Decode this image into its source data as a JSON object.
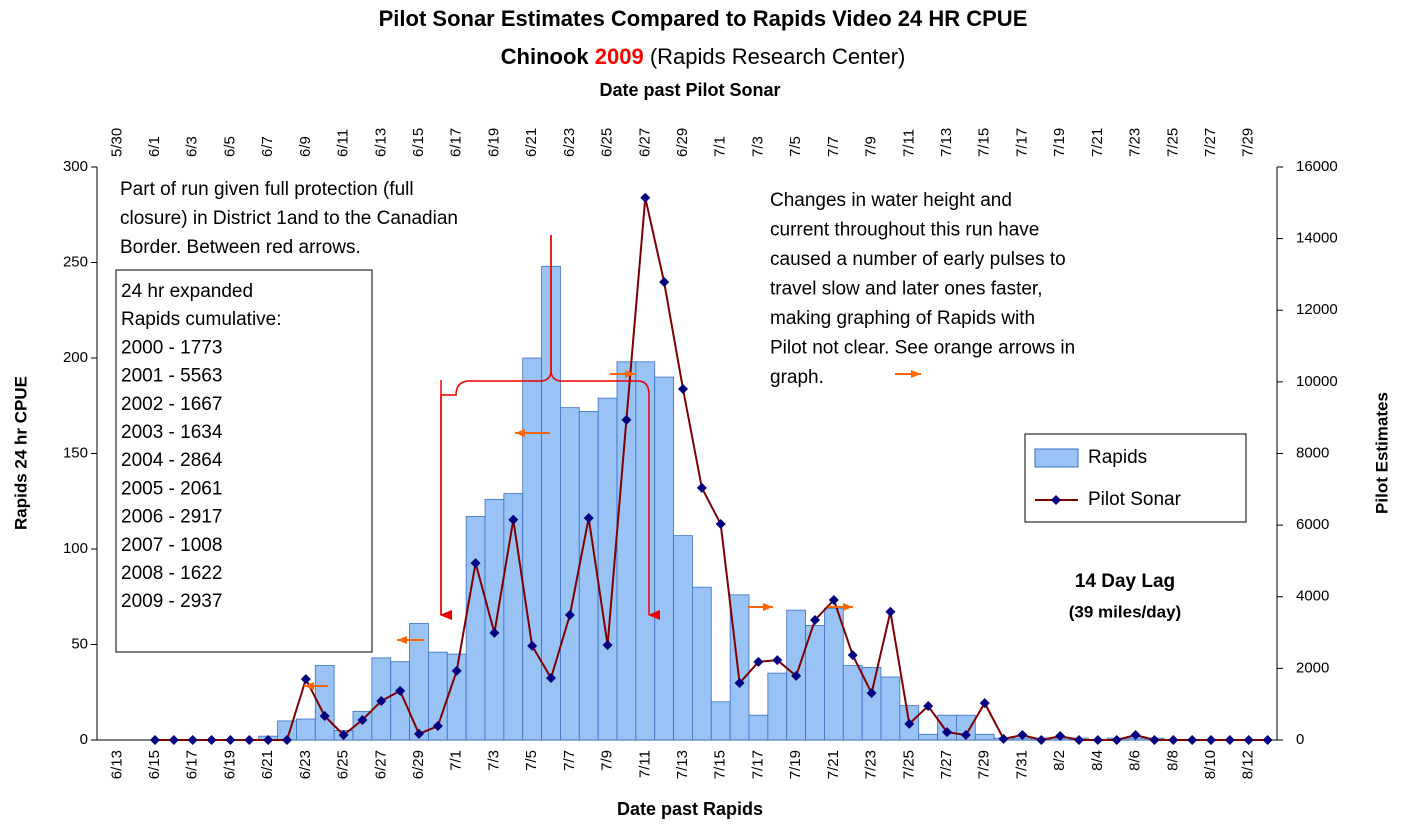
{
  "chart_data": {
    "type": "bar_line",
    "title": "Pilot Sonar Estimates Compared to Rapids Video 24 HR CPUE",
    "subtitle": [
      "Chinook",
      "2009",
      "(Rapids Research Center)"
    ],
    "subtitle_colors": [
      "#000000",
      "#ff0000",
      "#000000"
    ],
    "x2label": "Date past Pilot Sonar",
    "xlabel": "Date past Rapids",
    "ylabel": "Rapids 24 hr CPUE",
    "y2label": "Pilot Estimates",
    "categories": [
      null,
      "6/13",
      null,
      "6/15",
      null,
      "6/17",
      null,
      "6/19",
      null,
      "6/21",
      null,
      "6/23",
      null,
      "6/25",
      null,
      "6/27",
      null,
      "6/29",
      null,
      "7/1",
      null,
      "7/3",
      null,
      "7/5",
      null,
      "7/7",
      null,
      "7/9",
      null,
      "7/11",
      null,
      "7/13",
      null,
      "7/15",
      null,
      "7/17",
      null,
      "7/19",
      null,
      "7/21",
      null,
      "7/23",
      null,
      "7/25",
      null,
      "7/27",
      null,
      "7/29",
      null,
      "7/31",
      null,
      "8/2",
      null,
      "8/4",
      null,
      "8/6",
      null,
      "8/8",
      null,
      "8/10",
      null,
      "8/12",
      null
    ],
    "top_categories": [
      null,
      "5/30",
      null,
      "6/1",
      null,
      "6/3",
      null,
      "6/5",
      null,
      "6/7",
      null,
      "6/9",
      null,
      "6/11",
      null,
      "6/13",
      null,
      "6/15",
      null,
      "6/17",
      null,
      "6/19",
      null,
      "6/21",
      null,
      "6/23",
      null,
      "6/25",
      null,
      "6/27",
      null,
      "6/29",
      null,
      "7/1",
      null,
      "7/3",
      null,
      "7/5",
      null,
      "7/7",
      null,
      "7/9",
      null,
      "7/11",
      null,
      "7/13",
      null,
      "7/15",
      null,
      "7/17",
      null,
      "7/19",
      null,
      "7/21",
      null,
      "7/23",
      null,
      "7/25",
      null,
      "7/27",
      null,
      "7/29",
      null
    ],
    "series": [
      {
        "name": "Rapids",
        "type": "bar",
        "color": "#99c2f5",
        "edge_color": "#3a6fc4",
        "values": [
          0,
          0,
          0,
          0,
          0,
          0,
          0,
          0,
          0,
          2,
          10,
          11,
          39,
          5,
          15,
          43,
          41,
          61,
          46,
          45,
          117,
          126,
          129,
          200,
          248,
          174,
          172,
          179,
          198,
          198,
          190,
          107,
          80,
          20,
          76,
          13,
          35,
          68,
          60,
          69,
          39,
          38,
          33,
          18,
          3,
          13,
          13,
          3,
          1,
          1,
          1,
          1,
          1,
          0,
          1,
          1,
          1,
          0,
          0,
          0,
          0,
          0,
          0
        ]
      },
      {
        "name": "Pilot Sonar",
        "type": "line",
        "axis": "y2",
        "color": "#800000",
        "marker_color": "#000080",
        "values": [
          null,
          null,
          null,
          0,
          0,
          0,
          0,
          0,
          0,
          0,
          0,
          1700,
          670,
          140,
          560,
          1090,
          1370,
          170,
          390,
          1930,
          4940,
          2990,
          6150,
          2630,
          1730,
          3490,
          6200,
          2650,
          8940,
          15140,
          12790,
          9800,
          7040,
          6030,
          1590,
          2180,
          2230,
          1790,
          3350,
          3910,
          2370,
          1310,
          3580,
          450,
          950,
          220,
          140,
          1030,
          30,
          140,
          0,
          110,
          0,
          0,
          0,
          140,
          0,
          0,
          0,
          0,
          0,
          0,
          0
        ]
      }
    ],
    "ylim": [
      0,
      300
    ],
    "yticks": [
      0,
      50,
      100,
      150,
      200,
      250,
      300
    ],
    "y2lim": [
      0,
      16000
    ],
    "y2ticks": [
      0,
      2000,
      4000,
      6000,
      8000,
      10000,
      12000,
      14000,
      16000
    ],
    "legend": "right",
    "annotations": {
      "protection": [
        "Part of run given full protection (full",
        "closure) in District 1and to the Canadian",
        "Border. Between red arrows."
      ],
      "note": [
        " Changes in water height and",
        "current throughout this run have",
        "caused a number of early pulses to",
        "travel slow and later ones faster,",
        "making graphing of Rapids with",
        "Pilot not clear. See orange arrows in",
        "graph."
      ],
      "cumulative": [
        "24 hr expanded",
        "Rapids cumulative:",
        "2000 - 1773",
        "2001 - 5563",
        "2002 - 1667",
        "2003 - 1634",
        "2004 - 2864",
        "2005 - 2061",
        "2006 - 2917",
        "2007 - 1008",
        "2008 - 1622",
        "2009 - 2937"
      ],
      "lag": [
        "14 Day Lag",
        "(39 miles/day)"
      ]
    }
  }
}
